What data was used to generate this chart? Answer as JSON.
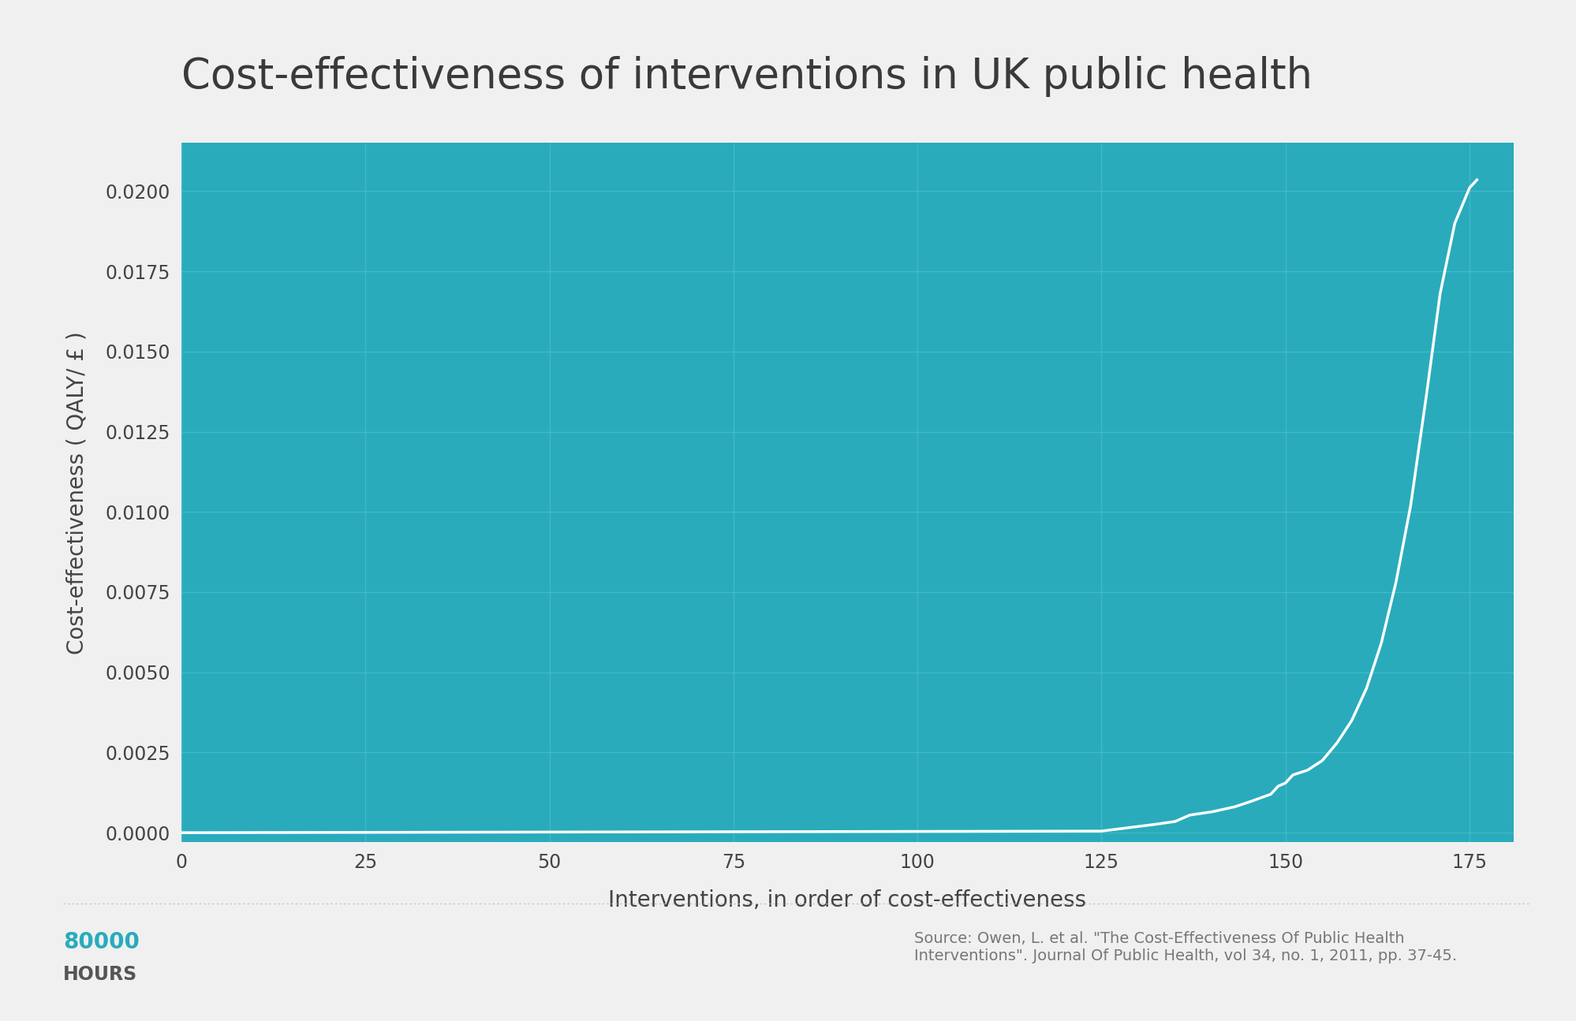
{
  "title": "Cost-effectiveness of interventions in UK public health",
  "xlabel": "Interventions, in order of cost-effectiveness",
  "ylabel": "Cost-effectiveness ( QALY/ £ )",
  "background_color": "#f0f0f0",
  "plot_bg_color": "#29ABBC",
  "line_color": "#ffffff",
  "title_color": "#3a3a3a",
  "label_color": "#444444",
  "tick_color": "#444444",
  "grid_color": "#4DC0CE",
  "source_text": "Source: Owen, L. et al. \"The Cost-Effectiveness Of Public Health\nInterventions\". Journal Of Public Health, vol 34, no. 1, 2011, pp. 37-45.",
  "brand_text_1": "80000",
  "brand_text_2": "HOURS",
  "brand_color": "#29ABBC",
  "hours_color": "#555555",
  "xlim": [
    0,
    181
  ],
  "ylim": [
    -0.0003,
    0.0215
  ],
  "xticks": [
    0,
    25,
    50,
    75,
    100,
    125,
    150,
    175
  ],
  "yticks": [
    0.0,
    0.0025,
    0.005,
    0.0075,
    0.01,
    0.0125,
    0.015,
    0.0175,
    0.02
  ],
  "line_width": 2.5,
  "figsize": [
    19.99,
    12.95
  ],
  "dpi": 100
}
